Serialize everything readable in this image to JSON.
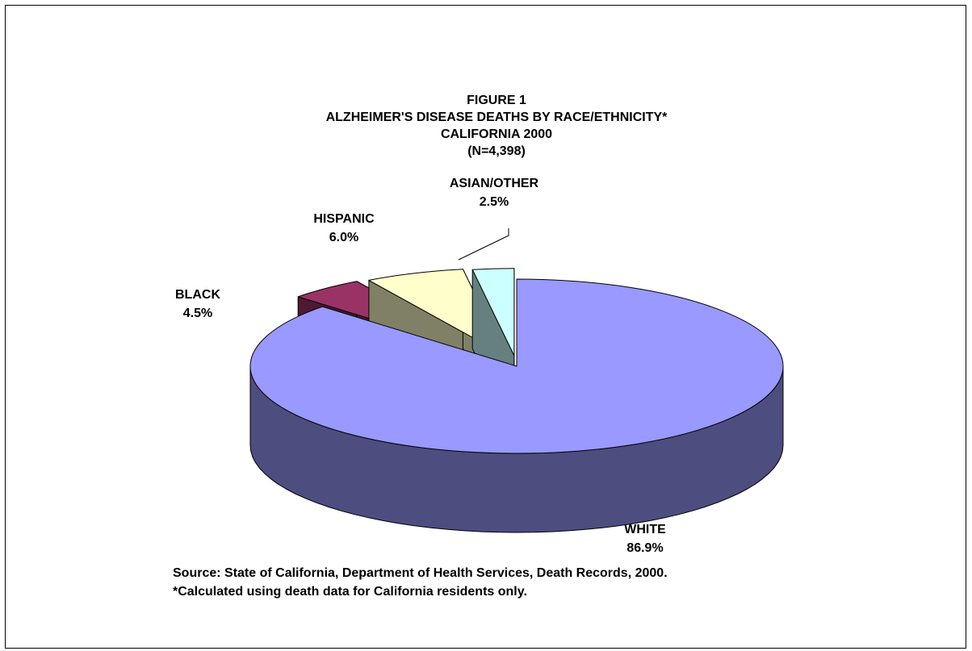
{
  "chart_data": {
    "type": "pie",
    "style": "3d-exploded",
    "title_lines": [
      "FIGURE 1",
      "ALZHEIMER'S DISEASE DEATHS BY RACE/ETHNICITY*",
      "CALIFORNIA 2000",
      "(N=4,398)"
    ],
    "slices": [
      {
        "label": "WHITE",
        "value": 86.9,
        "display": "86.9%",
        "color": "#9999ff",
        "side_color": "#4d4d80"
      },
      {
        "label": "BLACK",
        "value": 4.5,
        "display": "4.5%",
        "color": "#993366",
        "side_color": "#4d1a33"
      },
      {
        "label": "HISPANIC",
        "value": 6.0,
        "display": "6.0%",
        "color": "#ffffcc",
        "side_color": "#808066"
      },
      {
        "label": "ASIAN/OTHER",
        "value": 2.5,
        "display": "2.5%",
        "color": "#ccffff",
        "side_color": "#668080"
      }
    ],
    "footnotes": [
      "Source:  State of California, Department of Health Services, Death Records, 2000.",
      "*Calculated using death data for California residents only."
    ]
  }
}
